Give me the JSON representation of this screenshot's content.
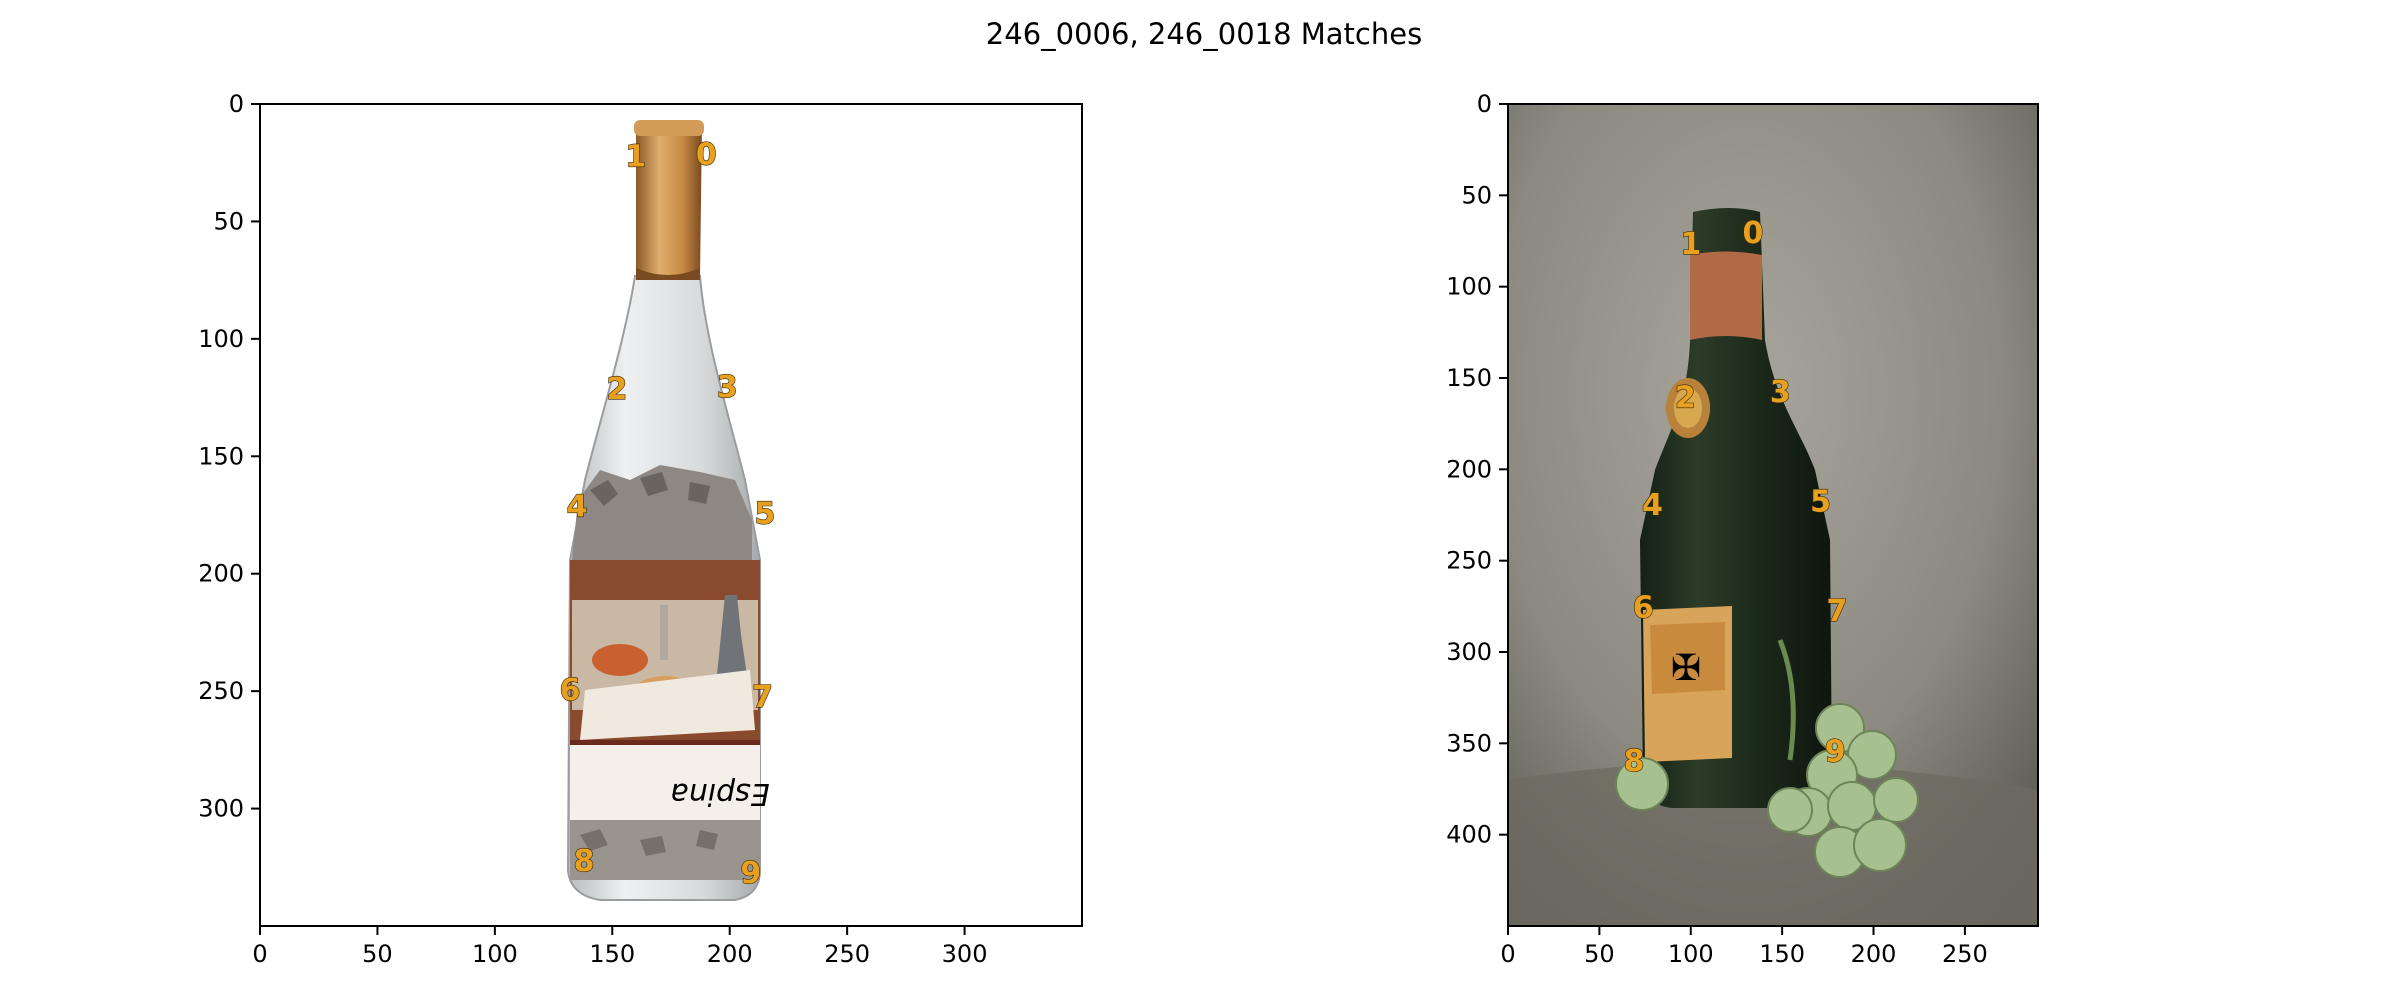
{
  "figure": {
    "title": "246_0006, 246_0018 Matches"
  },
  "colors": {
    "keypoint_label": "#e8a020",
    "axes_frame": "#000000"
  },
  "chart_data": [
    {
      "type": "scatter",
      "image": "wine bottle with jigsaw puzzle pieces on white background",
      "xlim": [
        0,
        350
      ],
      "ylim": [
        350,
        0
      ],
      "xticks": [
        0,
        50,
        100,
        150,
        200,
        250,
        300
      ],
      "yticks": [
        0,
        50,
        100,
        150,
        200,
        250,
        300
      ],
      "points": [
        {
          "label": "0",
          "x": 190,
          "y": 21
        },
        {
          "label": "1",
          "x": 160,
          "y": 22
        },
        {
          "label": "2",
          "x": 152,
          "y": 121
        },
        {
          "label": "3",
          "x": 199,
          "y": 120
        },
        {
          "label": "4",
          "x": 135,
          "y": 171
        },
        {
          "label": "5",
          "x": 215,
          "y": 174
        },
        {
          "label": "6",
          "x": 132,
          "y": 249
        },
        {
          "label": "7",
          "x": 214,
          "y": 252
        },
        {
          "label": "8",
          "x": 138,
          "y": 322
        },
        {
          "label": "9",
          "x": 209,
          "y": 327
        }
      ]
    },
    {
      "type": "scatter",
      "image": "dark green wine bottle with grapes on grey background",
      "xlim": [
        0,
        290
      ],
      "ylim": [
        450,
        0
      ],
      "xticks": [
        0,
        50,
        100,
        150,
        200,
        250
      ],
      "yticks": [
        0,
        50,
        100,
        150,
        200,
        250,
        300,
        350,
        400
      ],
      "points": [
        {
          "label": "0",
          "x": 134,
          "y": 70
        },
        {
          "label": "1",
          "x": 100,
          "y": 76
        },
        {
          "label": "2",
          "x": 97,
          "y": 160
        },
        {
          "label": "3",
          "x": 149,
          "y": 157
        },
        {
          "label": "4",
          "x": 79,
          "y": 219
        },
        {
          "label": "5",
          "x": 171,
          "y": 217
        },
        {
          "label": "6",
          "x": 74,
          "y": 275
        },
        {
          "label": "7",
          "x": 180,
          "y": 277
        },
        {
          "label": "8",
          "x": 69,
          "y": 359
        },
        {
          "label": "9",
          "x": 179,
          "y": 354
        }
      ]
    }
  ]
}
